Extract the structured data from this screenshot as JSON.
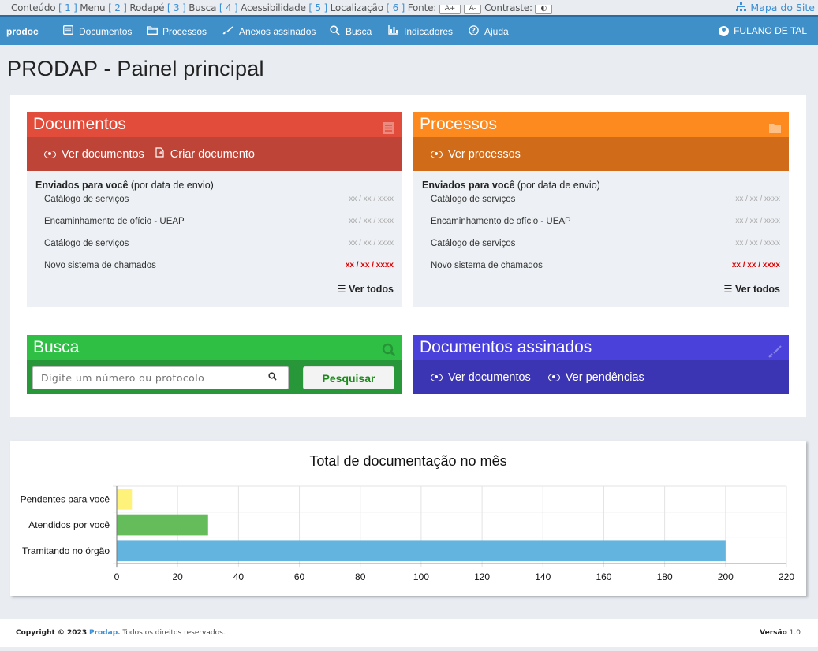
{
  "accessibility_bar": {
    "items": [
      {
        "label": "Conteúdo",
        "key": "1"
      },
      {
        "label": "Menu",
        "key": "2"
      },
      {
        "label": "Rodapé",
        "key": "3"
      },
      {
        "label": "Busca",
        "key": "4"
      },
      {
        "label": "Acessibilidade",
        "key": "5"
      },
      {
        "label": "Localização",
        "key": "6"
      }
    ],
    "font_label": "Fonte:",
    "font_increase": "A+",
    "font_decrease": "A-",
    "contrast_label": "Contraste:",
    "contrast_icon": "◐",
    "sitemap_label": "Mapa do Site",
    "sitemap_icon": "sitemap-icon"
  },
  "navbar": {
    "brand": "prodoc",
    "items": [
      {
        "label": "Documentos",
        "icon": "document-icon"
      },
      {
        "label": "Processos",
        "icon": "folder-icon"
      },
      {
        "label": "Anexos assinados",
        "icon": "signature-icon"
      },
      {
        "label": "Busca",
        "icon": "search-icon"
      },
      {
        "label": "Indicadores",
        "icon": "chart-icon"
      },
      {
        "label": "Ajuda",
        "icon": "help-icon"
      }
    ],
    "user_name": "FULANO DE TAL",
    "color": "#3f8fc9"
  },
  "page_title": "PRODAP - Painel principal",
  "documentos": {
    "title": "Documentos",
    "head_color": "#e24c3a",
    "actions_color": "#bd4437",
    "actions": [
      {
        "label": "Ver documentos",
        "icon": "eye-icon"
      },
      {
        "label": "Criar documento",
        "icon": "new-document-icon"
      }
    ],
    "subtitle_bold": "Enviados para você",
    "subtitle_rest": " (por data de envio)",
    "rows": [
      {
        "title": "Catálogo de serviços",
        "date": "xx / xx / xxxx",
        "urgent": false
      },
      {
        "title": "Encaminhamento de ofício - UEAP",
        "date": "xx / xx / xxxx",
        "urgent": false
      },
      {
        "title": "Catálogo de serviços",
        "date": "xx / xx / xxxx",
        "urgent": false
      },
      {
        "title": "Novo sistema de chamados",
        "date": "xx / xx / xxxx",
        "urgent": true
      }
    ],
    "see_all": "Ver todos"
  },
  "processos": {
    "title": "Processos",
    "head_color": "#fc8a1f",
    "actions_color": "#d06b1a",
    "actions": [
      {
        "label": "Ver processos",
        "icon": "eye-icon"
      }
    ],
    "subtitle_bold": "Enviados para você",
    "subtitle_rest": " (por data de envio)",
    "rows": [
      {
        "title": "Catálogo de serviços",
        "date": "xx / xx / xxxx",
        "urgent": false
      },
      {
        "title": "Encaminhamento de ofício - UEAP",
        "date": "xx / xx / xxxx",
        "urgent": false
      },
      {
        "title": "Catálogo de serviços",
        "date": "xx / xx / xxxx",
        "urgent": false
      },
      {
        "title": "Novo sistema de chamados",
        "date": "xx / xx / xxxx",
        "urgent": true
      }
    ],
    "see_all": "Ver todos"
  },
  "busca": {
    "title": "Busca",
    "head_color": "#2fbf45",
    "body_color": "#27973a",
    "placeholder": "Digite um número ou protocolo",
    "button_label": "Pesquisar"
  },
  "assinados": {
    "title": "Documentos assinados",
    "head_color": "#4941da",
    "actions_color": "#3b34b3",
    "actions": [
      {
        "label": "Ver documentos",
        "icon": "eye-icon"
      },
      {
        "label": "Ver pendências",
        "icon": "eye-pending-icon"
      }
    ]
  },
  "chart_data": {
    "type": "bar",
    "orientation": "horizontal",
    "title": "Total de documentação no mês",
    "categories": [
      "Pendentes para você",
      "Atendidos por você",
      "Tramitando no órgão"
    ],
    "values": [
      5,
      30,
      200
    ],
    "colors": [
      "#fff27a",
      "#64bd5a",
      "#63b4de"
    ],
    "xlim": [
      0,
      220
    ],
    "xticks": [
      0,
      20,
      40,
      60,
      80,
      100,
      120,
      140,
      160,
      180,
      200,
      220
    ],
    "grid": true,
    "legend": "none"
  },
  "footer": {
    "copyright_prefix": "Copyright © 2023",
    "brand": "Prodap.",
    "rights": "Todos os direitos reservados.",
    "version_label": "Versão",
    "version": "1.0"
  }
}
